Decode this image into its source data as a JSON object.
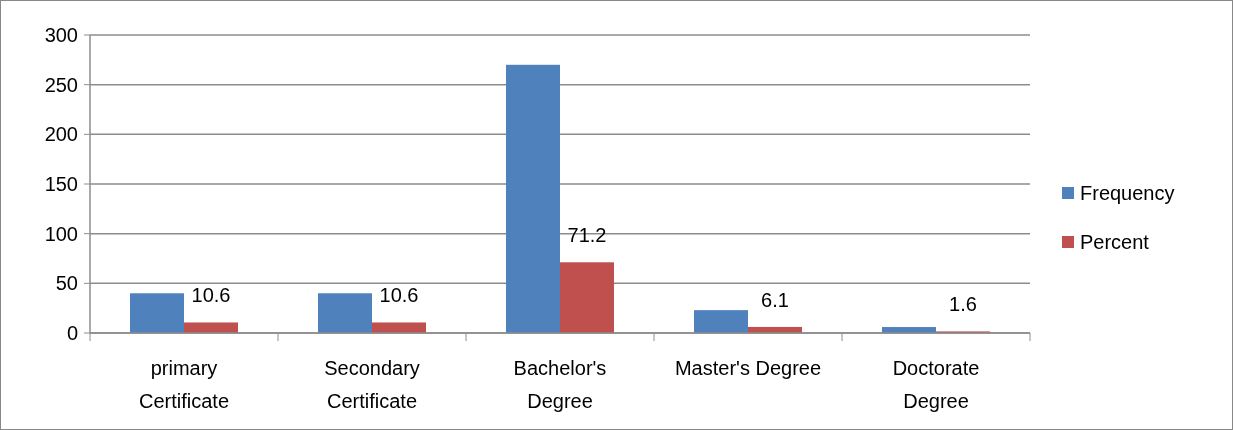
{
  "chart_data": {
    "type": "bar",
    "categories": [
      "primary Certificate",
      "Secondary Certificate",
      "Bachelor's Degree",
      "Master's Degree",
      "Doctorate Degree"
    ],
    "series": [
      {
        "name": "Frequency",
        "color": "#4f81bd",
        "values": [
          40,
          40,
          270,
          23,
          6
        ]
      },
      {
        "name": "Percent",
        "color": "#c0504d",
        "values": [
          10.6,
          10.6,
          71.2,
          6.1,
          1.6
        ],
        "value_labels": [
          "10.6",
          "10.6",
          "71.2",
          "6.1",
          "1.6"
        ]
      }
    ],
    "ylim": [
      0,
      300
    ],
    "yticks": [
      0,
      50,
      100,
      150,
      200,
      250,
      300
    ],
    "grid": "y",
    "legend": "right"
  }
}
